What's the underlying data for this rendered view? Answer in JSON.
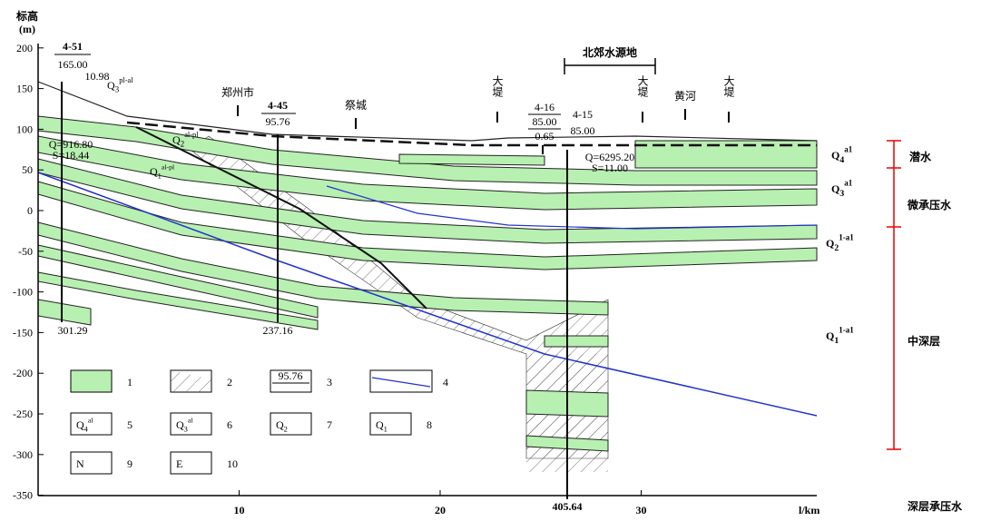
{
  "axis": {
    "y_title": "标高",
    "y_unit": "(m)",
    "x_unit": "l/km",
    "yticks": [
      200,
      150,
      100,
      50,
      0,
      -50,
      -100,
      -150,
      -200,
      -250,
      -300,
      -350
    ],
    "xticks": [
      10,
      20,
      30
    ]
  },
  "boreholes": [
    {
      "id": "4-51",
      "elevation": "165.00",
      "water": "10.98",
      "depth": "301.29",
      "q": "Q=916.80",
      "s": "S=18.44"
    },
    {
      "id": "4-45",
      "elevation": "95.76",
      "depth": "237.16"
    },
    {
      "id": "4-16",
      "elevation": "85.00",
      "water": "0.65"
    },
    {
      "id": "4-15",
      "elevation": "85.00",
      "depth": "405.64",
      "q": "Q=6295.20",
      "s": "S=11.00"
    }
  ],
  "places": [
    "郑州市",
    "祭城",
    "大堤",
    "大堤",
    "黄河",
    "大堤"
  ],
  "water_source": "北郊水源地",
  "section_labels": [
    {
      "base": "Q",
      "sub": "3",
      "sup": "pl-al"
    },
    {
      "base": "Q",
      "sub": "2",
      "sup": "al-pl"
    },
    {
      "base": "Q",
      "sub": "1",
      "sup": "al-pl"
    }
  ],
  "strata": [
    {
      "base": "Q",
      "sub": "4",
      "sup": "a1"
    },
    {
      "base": "Q",
      "sub": "3",
      "sup": "a1"
    },
    {
      "base": "Q",
      "sub": "2",
      "sup": "1-a1"
    },
    {
      "base": "Q",
      "sub": "1",
      "sup": "1-a1"
    }
  ],
  "zones": [
    "潜水",
    "微承压水",
    "中深层",
    "深层承压水"
  ],
  "legend": [
    {
      "number": 1
    },
    {
      "number": 2
    },
    {
      "number": 3,
      "sample": "95.76"
    },
    {
      "number": 4
    },
    {
      "number": 5,
      "symbol": {
        "base": "Q",
        "sub": "4",
        "sup": "al"
      }
    },
    {
      "number": 6,
      "symbol": {
        "base": "Q",
        "sub": "3",
        "sup": "al"
      }
    },
    {
      "number": 7,
      "symbol": {
        "base": "Q",
        "sub": "2"
      }
    },
    {
      "number": 8,
      "symbol": {
        "base": "Q",
        "sub": "1"
      }
    },
    {
      "number": 9,
      "symbol": {
        "base": "N"
      }
    },
    {
      "number": 10,
      "symbol": {
        "base": "E"
      }
    }
  ]
}
